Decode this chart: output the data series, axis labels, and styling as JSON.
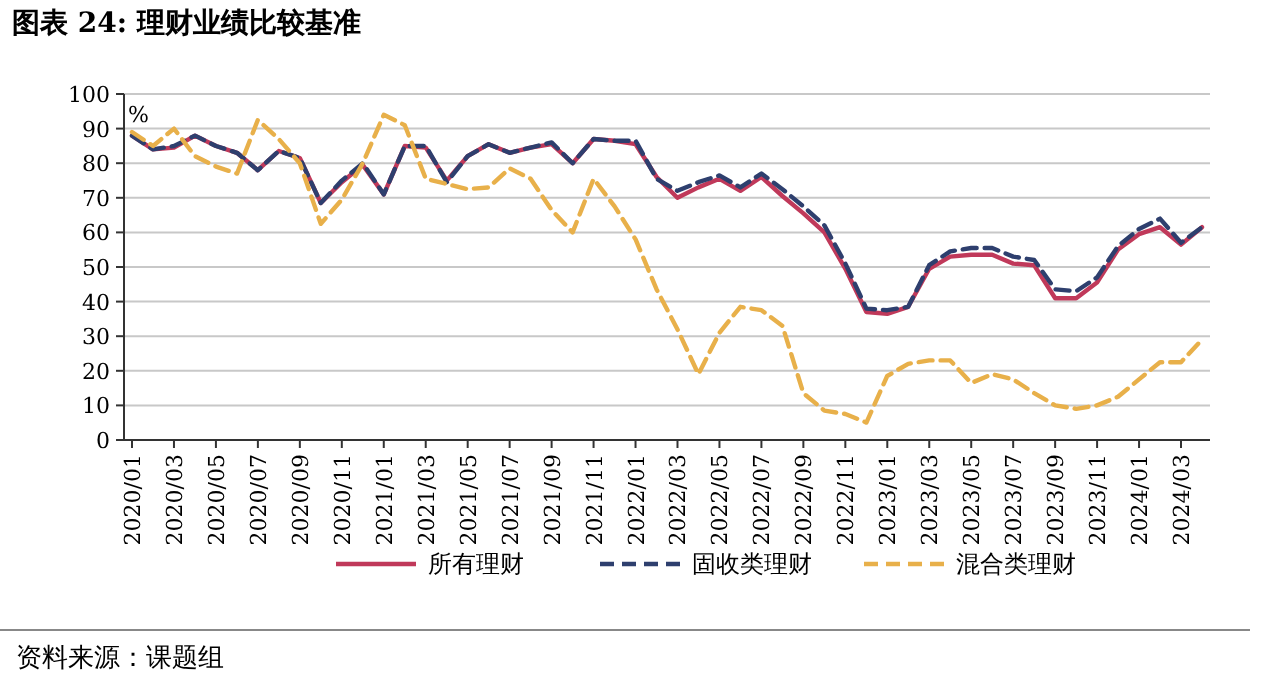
{
  "chart_data": {
    "type": "line",
    "title": "图表 24: 理财业绩比较基准",
    "ylabel": "%",
    "annotations": [
      "资料来源：课题组"
    ],
    "categories": [
      "2020/01",
      null,
      "2020/03",
      null,
      "2020/05",
      null,
      "2020/07",
      null,
      "2020/09",
      null,
      "2020/11",
      null,
      "2021/01",
      null,
      "2021/03",
      null,
      "2021/05",
      null,
      "2021/07",
      null,
      "2021/09",
      null,
      "2021/11",
      null,
      "2022/01",
      null,
      "2022/03",
      null,
      "2022/05",
      null,
      "2022/07",
      null,
      "2022/09",
      null,
      "2022/11",
      null,
      "2023/01",
      null,
      "2023/03",
      null,
      "2023/05",
      null,
      "2023/07",
      null,
      "2023/09",
      null,
      "2023/11",
      null,
      "2024/01",
      null,
      "2024/03",
      null
    ],
    "series": [
      {
        "name": "所有理财",
        "color": "#c0395a",
        "line_style": "solid",
        "values": [
          88,
          84,
          84.5,
          88,
          85,
          83,
          78,
          83.5,
          81.5,
          68.5,
          74.5,
          79.5,
          71,
          85,
          84.5,
          75,
          82,
          85.5,
          83,
          84.5,
          85.5,
          80,
          87,
          86.5,
          85.5,
          76,
          70,
          73,
          75.5,
          72,
          76,
          70.5,
          65.5,
          60,
          49.5,
          37,
          36.5,
          38.5,
          49.5,
          53,
          53.5,
          53.5,
          51,
          50.5,
          41,
          41,
          45.5,
          55,
          59.5,
          61.5,
          56.5,
          61.5
        ]
      },
      {
        "name": "固收类理财",
        "color": "#2e3f6e",
        "line_style": "dashed",
        "values": [
          88,
          84,
          85,
          88,
          85,
          83,
          78,
          83.5,
          81.5,
          68.5,
          75,
          80,
          71,
          85,
          85,
          74.5,
          82,
          85.5,
          83,
          84.5,
          86,
          80,
          87,
          86.5,
          86.5,
          75.5,
          72,
          74.5,
          76.5,
          73,
          77,
          72.5,
          67.5,
          62,
          51,
          38,
          37.5,
          38.5,
          50.5,
          54.5,
          55.5,
          55.5,
          53,
          52,
          43.5,
          43,
          47,
          56,
          61,
          64,
          57,
          61.5
        ]
      },
      {
        "name": "混合类理财",
        "color": "#e8b04a",
        "line_style": "dashed",
        "values": [
          89,
          85,
          90,
          82,
          79,
          77,
          92.5,
          87,
          80,
          62.5,
          69.5,
          80,
          94,
          91,
          75.5,
          74,
          72.5,
          73,
          78.5,
          75.5,
          66.5,
          60,
          75.5,
          67.5,
          58,
          43.5,
          32,
          19,
          31,
          38.5,
          37.5,
          33,
          13.5,
          8.5,
          7.5,
          5,
          18.5,
          22,
          23,
          23,
          16.5,
          19,
          17.5,
          13.5,
          10,
          9,
          10,
          12.5,
          17.5,
          22.5,
          22.5,
          29
        ]
      }
    ],
    "ylim": [
      0,
      100
    ],
    "yticks": [
      0,
      10,
      20,
      30,
      40,
      50,
      60,
      70,
      80,
      90,
      100
    ],
    "grid": "y",
    "legend": "bottom",
    "marker": "none"
  }
}
